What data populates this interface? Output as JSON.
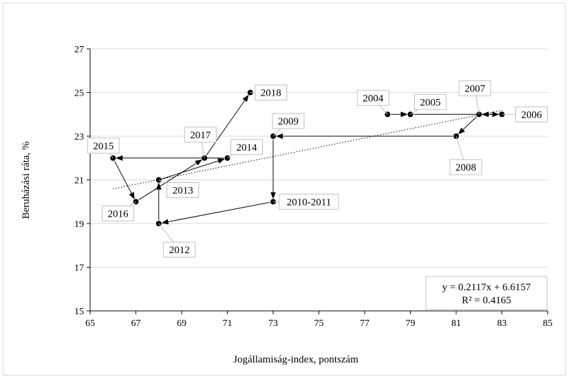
{
  "chart_data": {
    "type": "scatter",
    "xlabel": "Jogállamiság-index, pontszám",
    "ylabel": "Beruházási ráta, %",
    "xlim": [
      65,
      85
    ],
    "ylim": [
      15,
      27
    ],
    "xticks": [
      "65",
      "67",
      "69",
      "71",
      "73",
      "75",
      "77",
      "79",
      "81",
      "83",
      "85"
    ],
    "yticks": [
      "15",
      "17",
      "19",
      "21",
      "23",
      "25",
      "27"
    ],
    "grid": "horizontal",
    "points": [
      {
        "label": "2004",
        "x": 78,
        "y": 24
      },
      {
        "label": "2005",
        "x": 79,
        "y": 24
      },
      {
        "label": "2006",
        "x": 83,
        "y": 24
      },
      {
        "label": "2007",
        "x": 82,
        "y": 24
      },
      {
        "label": "2008",
        "x": 81,
        "y": 23
      },
      {
        "label": "2009",
        "x": 73,
        "y": 23
      },
      {
        "label": "2010-2011",
        "x": 73,
        "y": 20
      },
      {
        "label": "2012",
        "x": 68,
        "y": 19
      },
      {
        "label": "2013",
        "x": 68,
        "y": 21
      },
      {
        "label": "2014",
        "x": 71,
        "y": 22
      },
      {
        "label": "2015",
        "x": 66,
        "y": 22
      },
      {
        "label": "2016",
        "x": 67,
        "y": 20
      },
      {
        "label": "2017",
        "x": 70,
        "y": 22
      },
      {
        "label": "2018",
        "x": 72,
        "y": 25
      }
    ],
    "trendline": {
      "slope": 0.2117,
      "intercept": 6.6157,
      "r2": 0.4165,
      "style": "dotted"
    },
    "equation": {
      "line1": "y = 0.2117x + 6.6157",
      "line2": "R² = 0.4165"
    }
  }
}
